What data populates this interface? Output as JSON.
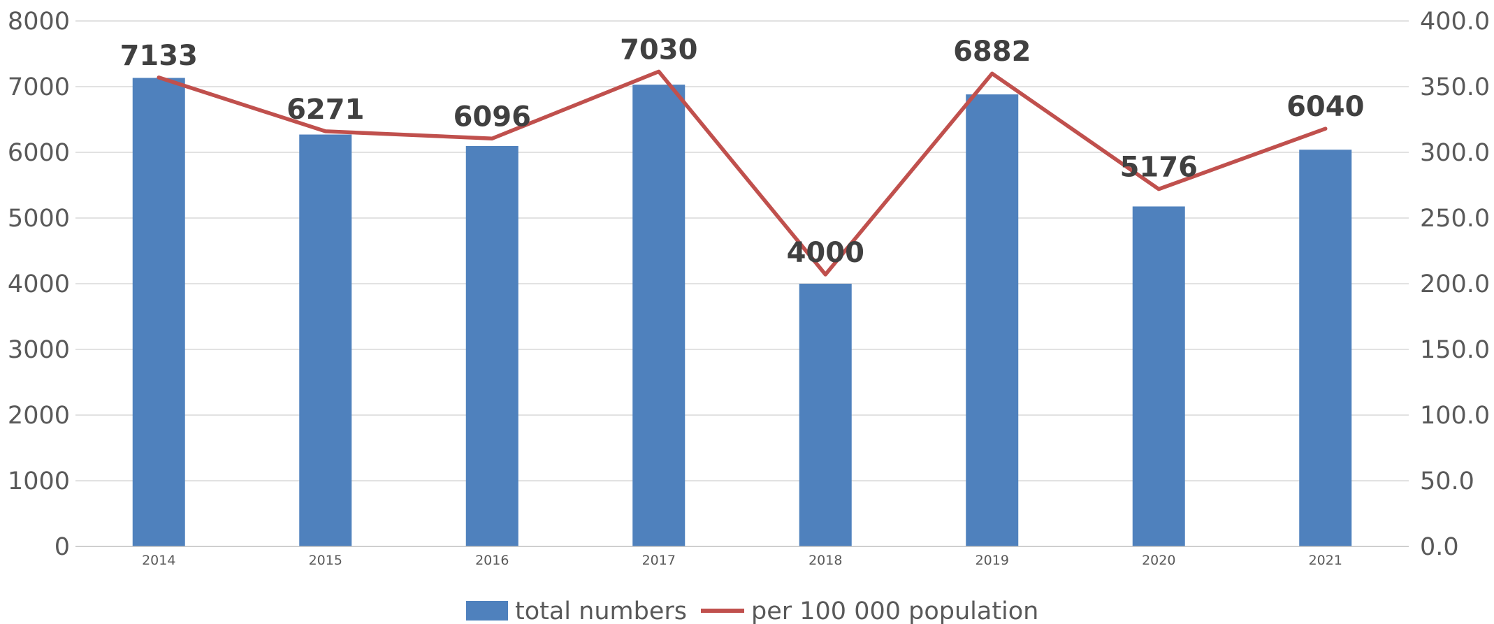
{
  "chart_data": {
    "type": "bar",
    "categories": [
      "2014",
      "2015",
      "2016",
      "2017",
      "2018",
      "2019",
      "2020",
      "2021"
    ],
    "series": [
      {
        "name": "total numbers",
        "type": "bar",
        "axis": "left",
        "color": "#4f81bd",
        "values": [
          7133,
          6271,
          6096,
          7030,
          4000,
          6882,
          5176,
          6040
        ]
      },
      {
        "name": "per 100 000 population",
        "type": "line",
        "axis": "right",
        "color": "#c0504d",
        "values": [
          357.0,
          316.0,
          310.5,
          361.5,
          207.0,
          360.0,
          272.0,
          318.0
        ]
      }
    ],
    "data_labels": [
      "7133",
      "6271",
      "6096",
      "7030",
      "4000",
      "6882",
      "5176",
      "6040"
    ],
    "y_left": {
      "ylim": [
        0,
        8000
      ],
      "ticks": [
        "0",
        "1000",
        "2000",
        "3000",
        "4000",
        "5000",
        "6000",
        "7000",
        "8000"
      ]
    },
    "y_right": {
      "ylim": [
        0,
        400
      ],
      "ticks": [
        "0.0",
        "50.0",
        "100.0",
        "150.0",
        "200.0",
        "250.0",
        "300.0",
        "350.0",
        "400.0"
      ]
    },
    "grid": true,
    "legend_position": "bottom"
  }
}
